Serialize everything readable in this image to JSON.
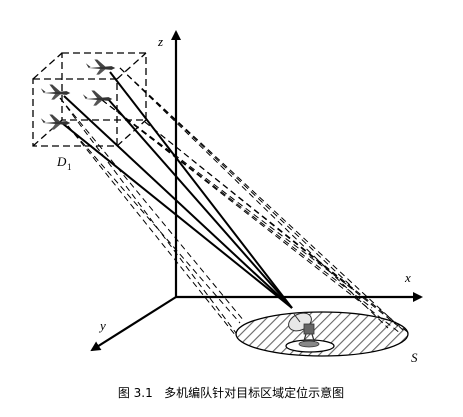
{
  "axes": {
    "x": "x",
    "y": "y",
    "z": "z"
  },
  "box_label": {
    "main": "D",
    "subscript": "1"
  },
  "target_area_label": "S",
  "caption": "图 3.1   多机编队针对目标区域定位示意图",
  "colors": {
    "line": "#000000",
    "hatch": "#555555",
    "background": "#ffffff"
  },
  "icons": {
    "aircraft": "uav-aircraft-icon",
    "receiver": "satellite-dish-icon"
  }
}
